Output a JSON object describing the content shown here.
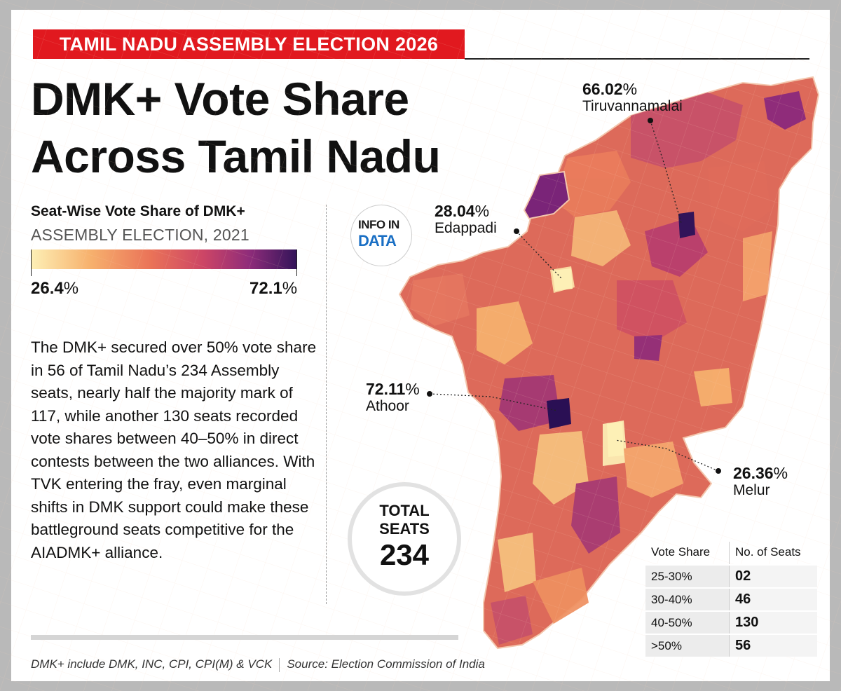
{
  "kicker": "TAMIL NADU ASSEMBLY ELECTION 2026",
  "headline": {
    "line1": "DMK+ Vote Share",
    "line2": "Across Tamil Nadu"
  },
  "legend": {
    "title": "Seat-Wise Vote Share of DMK+",
    "subtitle": "ASSEMBLY ELECTION, 2021",
    "min_value": "26.4",
    "max_value": "72.1",
    "unit": "%",
    "colors": [
      "#fdf0b6",
      "#f7b26e",
      "#ea7358",
      "#cc4566",
      "#8f2c7a",
      "#321459"
    ]
  },
  "body": "The DMK+ secured over 50% vote share in 56 of Tamil Nadu’s 234 Assembly seats, nearly half the majority mark of 117, while another 130 seats recorded vote shares between 40–50% in direct contests between the two alliances. With TVK entering the fray, even marginal shifts in DMK support could make these battleground seats competitive for the AIADMK+ alliance.",
  "logo": {
    "line1": "INFO IN",
    "line2": "DATA"
  },
  "total": {
    "label1": "TOTAL",
    "label2": "SEATS",
    "value": "234"
  },
  "callouts": [
    {
      "value": "66.02",
      "unit": "%",
      "name": "Tiruvannamalai"
    },
    {
      "value": "28.04",
      "unit": "%",
      "name": "Edappadi"
    },
    {
      "value": "72.11",
      "unit": "%",
      "name": "Athoor"
    },
    {
      "value": "26.36",
      "unit": "%",
      "name": "Melur"
    }
  ],
  "table": {
    "headers": [
      "Vote Share",
      "No. of Seats"
    ],
    "rows": [
      {
        "range": "25-30%",
        "seats": "02"
      },
      {
        "range": "30-40%",
        "seats": "46"
      },
      {
        "range": "40-50%",
        "seats": "130"
      },
      {
        "range": ">50%",
        "seats": "56"
      }
    ]
  },
  "footer": {
    "note": "DMK+ include DMK, INC, CPI, CPI(M) & VCK",
    "source": "Source: Election Commission of India"
  }
}
